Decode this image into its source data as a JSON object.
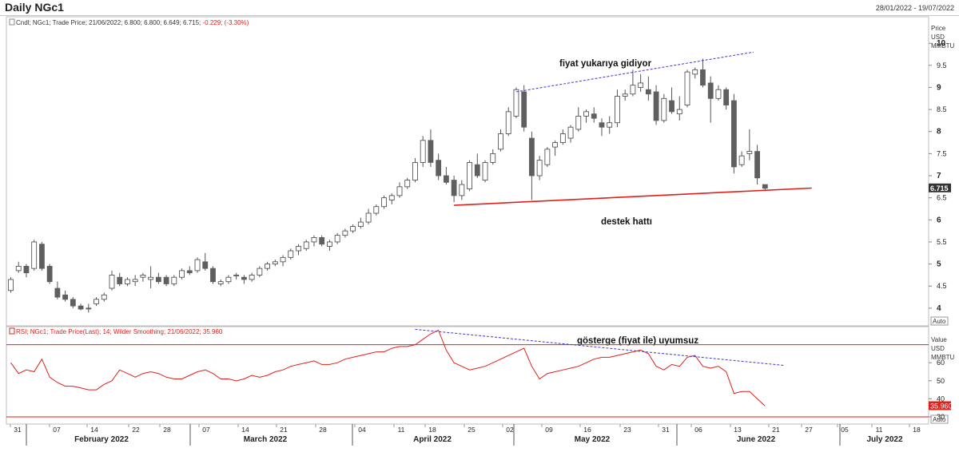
{
  "window": {
    "title": "Daily NGc1",
    "date_range": "28/01/2022 - 19/07/2022"
  },
  "price_panel": {
    "legend_prefix": "Cndl; NGc1; Trade Price; 21/06/2022; 6.800; 6.800; 6.649; 6.715; ",
    "legend_change": "-0.229; (-3.30%)",
    "axis_title": [
      "Price",
      "USD",
      "MMBTU"
    ],
    "last_price_label": "6.715",
    "auto_label": "Auto",
    "annotations": {
      "upper_trend": "fiyat yukarıya gidiyor",
      "support": "destek hattı"
    }
  },
  "rsi_panel": {
    "legend": "RSI; NGc1; Trade Price(Last);  14; Wilder Smoothing; 21/06/2022; 35.960",
    "axis_title": [
      "Value",
      "USD",
      "MMBTU"
    ],
    "last_value_label": "35.960",
    "auto_label": "Auto",
    "annotation": "gösterge (fiyat ile) uyumsuz"
  },
  "chart_data": [
    {
      "type": "candlestick",
      "title": "Daily NGc1",
      "ylabel": "Price USD MMBTU",
      "ylim": [
        3.6,
        10.6
      ],
      "yticks": [
        4,
        4.5,
        5,
        5.5,
        6,
        6.5,
        7,
        7.5,
        8,
        8.5,
        9,
        9.5,
        10
      ],
      "ytick_labels": [
        "4",
        "4.5",
        "5",
        "5.5",
        "6",
        "6.5",
        "7",
        "7.5",
        "8",
        "8.5",
        "9",
        "9.5",
        "10"
      ],
      "x_tick_labels": [
        "31",
        "07",
        "14",
        "22",
        "28",
        "07",
        "14",
        "21",
        "28",
        "04",
        "11",
        "18",
        "25",
        "02",
        "09",
        "16",
        "23",
        "31",
        "06",
        "13",
        "21",
        "27",
        "05",
        "11",
        "18"
      ],
      "month_labels": [
        "February 2022",
        "March 2022",
        "April 2022",
        "May 2022",
        "June 2022",
        "July 2022"
      ],
      "candles": [
        [
          4.4,
          4.7,
          4.35,
          4.65
        ],
        [
          4.85,
          5.05,
          4.8,
          4.95
        ],
        [
          4.95,
          5.0,
          4.7,
          4.8
        ],
        [
          4.9,
          5.55,
          4.85,
          5.5
        ],
        [
          5.45,
          5.5,
          4.85,
          4.9
        ],
        [
          4.95,
          5.0,
          4.55,
          4.6
        ],
        [
          4.45,
          4.6,
          4.2,
          4.25
        ],
        [
          4.3,
          4.4,
          4.15,
          4.2
        ],
        [
          4.2,
          4.25,
          4.0,
          4.05
        ],
        [
          4.05,
          4.1,
          3.95,
          3.98
        ],
        [
          4.0,
          4.1,
          3.9,
          4.0
        ],
        [
          4.1,
          4.25,
          4.05,
          4.2
        ],
        [
          4.2,
          4.35,
          4.15,
          4.3
        ],
        [
          4.45,
          4.85,
          4.4,
          4.75
        ],
        [
          4.7,
          4.8,
          4.5,
          4.55
        ],
        [
          4.55,
          4.7,
          4.5,
          4.65
        ],
        [
          4.6,
          4.75,
          4.5,
          4.65
        ],
        [
          4.7,
          4.8,
          4.6,
          4.75
        ],
        [
          4.65,
          4.95,
          4.45,
          4.7
        ],
        [
          4.7,
          4.8,
          4.55,
          4.6
        ],
        [
          4.7,
          4.75,
          4.5,
          4.55
        ],
        [
          4.55,
          4.75,
          4.5,
          4.7
        ],
        [
          4.7,
          4.9,
          4.65,
          4.85
        ],
        [
          4.85,
          4.95,
          4.75,
          4.8
        ],
        [
          4.85,
          5.15,
          4.8,
          5.1
        ],
        [
          5.05,
          5.25,
          4.85,
          4.9
        ],
        [
          4.9,
          4.95,
          4.55,
          4.6
        ],
        [
          4.55,
          4.65,
          4.5,
          4.6
        ],
        [
          4.6,
          4.75,
          4.55,
          4.7
        ],
        [
          4.75,
          4.8,
          4.65,
          4.75
        ],
        [
          4.7,
          4.75,
          4.55,
          4.65
        ],
        [
          4.65,
          4.8,
          4.6,
          4.75
        ],
        [
          4.75,
          4.95,
          4.7,
          4.9
        ],
        [
          4.9,
          5.05,
          4.85,
          5.0
        ],
        [
          5.0,
          5.1,
          4.95,
          5.05
        ],
        [
          5.05,
          5.2,
          4.95,
          5.15
        ],
        [
          5.15,
          5.35,
          5.1,
          5.3
        ],
        [
          5.3,
          5.45,
          5.2,
          5.4
        ],
        [
          5.35,
          5.55,
          5.3,
          5.5
        ],
        [
          5.5,
          5.65,
          5.4,
          5.6
        ],
        [
          5.6,
          5.65,
          5.4,
          5.45
        ],
        [
          5.4,
          5.55,
          5.3,
          5.5
        ],
        [
          5.5,
          5.7,
          5.45,
          5.65
        ],
        [
          5.65,
          5.8,
          5.6,
          5.75
        ],
        [
          5.75,
          5.9,
          5.7,
          5.85
        ],
        [
          5.85,
          6.05,
          5.8,
          5.95
        ],
        [
          5.95,
          6.25,
          5.9,
          6.15
        ],
        [
          6.15,
          6.35,
          6.1,
          6.3
        ],
        [
          6.3,
          6.55,
          6.25,
          6.5
        ],
        [
          6.45,
          6.6,
          6.35,
          6.55
        ],
        [
          6.55,
          6.85,
          6.5,
          6.75
        ],
        [
          6.75,
          6.95,
          6.7,
          6.9
        ],
        [
          6.9,
          7.4,
          6.85,
          7.3
        ],
        [
          7.3,
          7.9,
          7.2,
          7.8
        ],
        [
          7.8,
          8.05,
          7.2,
          7.3
        ],
        [
          7.35,
          7.5,
          6.9,
          7.0
        ],
        [
          7.0,
          7.2,
          6.8,
          6.85
        ],
        [
          6.9,
          7.0,
          6.4,
          6.55
        ],
        [
          6.55,
          6.9,
          6.45,
          6.8
        ],
        [
          6.7,
          7.35,
          6.65,
          7.3
        ],
        [
          7.25,
          7.5,
          6.95,
          7.0
        ],
        [
          6.9,
          7.35,
          6.85,
          7.3
        ],
        [
          7.3,
          7.6,
          7.25,
          7.5
        ],
        [
          7.6,
          8.05,
          7.55,
          7.95
        ],
        [
          7.95,
          8.55,
          7.9,
          8.45
        ],
        [
          8.35,
          9.0,
          8.3,
          8.95
        ],
        [
          8.9,
          9.05,
          8.0,
          8.1
        ],
        [
          7.85,
          8.0,
          6.45,
          7.0
        ],
        [
          7.0,
          7.45,
          6.9,
          7.35
        ],
        [
          7.25,
          7.65,
          7.2,
          7.6
        ],
        [
          7.65,
          7.8,
          7.45,
          7.75
        ],
        [
          7.75,
          8.05,
          7.7,
          7.95
        ],
        [
          7.85,
          8.15,
          7.75,
          8.1
        ],
        [
          8.05,
          8.55,
          8.0,
          8.35
        ],
        [
          8.35,
          8.5,
          8.2,
          8.45
        ],
        [
          8.4,
          8.55,
          8.2,
          8.3
        ],
        [
          8.2,
          8.3,
          7.9,
          8.1
        ],
        [
          8.1,
          8.35,
          7.95,
          8.2
        ],
        [
          8.2,
          8.95,
          8.1,
          8.8
        ],
        [
          8.8,
          8.95,
          8.7,
          8.85
        ],
        [
          8.85,
          9.4,
          8.8,
          9.05
        ],
        [
          9.0,
          9.3,
          8.9,
          9.1
        ],
        [
          8.95,
          9.25,
          8.7,
          8.85
        ],
        [
          8.9,
          9.05,
          8.15,
          8.25
        ],
        [
          8.25,
          8.85,
          8.2,
          8.75
        ],
        [
          8.7,
          9.0,
          8.4,
          8.45
        ],
        [
          8.4,
          8.8,
          8.25,
          8.5
        ],
        [
          8.6,
          9.4,
          8.55,
          9.35
        ],
        [
          9.3,
          9.45,
          9.2,
          9.4
        ],
        [
          9.4,
          9.65,
          9.0,
          9.05
        ],
        [
          9.1,
          9.25,
          8.2,
          8.75
        ],
        [
          8.75,
          9.05,
          8.7,
          8.95
        ],
        [
          8.95,
          9.0,
          8.5,
          8.6
        ],
        [
          8.7,
          8.85,
          7.05,
          7.2
        ],
        [
          7.25,
          7.55,
          7.2,
          7.45
        ],
        [
          7.5,
          8.05,
          7.35,
          7.55
        ],
        [
          7.55,
          7.7,
          6.8,
          6.95
        ],
        [
          6.8,
          6.8,
          6.65,
          6.715
        ]
      ],
      "trendlines": {
        "upper_dashed": [
          [
            8.9,
            9.8
          ]
        ],
        "support": [
          [
            6.33,
            6.72
          ]
        ]
      },
      "last_value": 6.715
    },
    {
      "type": "line",
      "title": "RSI; NGc1; Trade Price(Last); 14; Wilder Smoothing",
      "ylabel": "Value USD MMBTU",
      "ylim": [
        26,
        80
      ],
      "yticks": [
        30,
        40,
        50,
        60
      ],
      "ytick_labels": [
        "30",
        "40",
        "50",
        "60"
      ],
      "reference_lines": [
        30,
        70
      ],
      "series": [
        {
          "name": "RSI",
          "values": [
            60,
            54,
            56,
            55,
            62,
            52,
            49,
            47,
            47,
            46,
            45,
            45,
            48,
            50,
            56,
            54,
            52,
            54,
            55,
            54,
            52,
            51,
            51,
            53,
            55,
            56,
            54,
            51,
            51,
            50,
            51,
            53,
            52,
            53,
            55,
            56,
            58,
            59,
            60,
            61,
            59,
            59,
            60,
            62,
            63,
            64,
            65,
            66,
            66,
            68,
            69,
            69,
            70,
            73,
            76,
            78,
            67,
            60,
            58,
            56,
            57,
            58,
            60,
            62,
            64,
            66,
            68,
            58,
            51,
            54,
            55,
            56,
            57,
            58,
            60,
            62,
            63,
            63,
            64,
            65,
            66,
            67,
            65,
            58,
            56,
            59,
            58,
            63,
            64,
            58,
            57,
            58,
            55,
            43,
            44,
            44,
            40,
            36
          ]
        }
      ],
      "trendline_dashed": [
        [
          78.5,
          58.5
        ]
      ],
      "last_value": 35.96
    }
  ]
}
